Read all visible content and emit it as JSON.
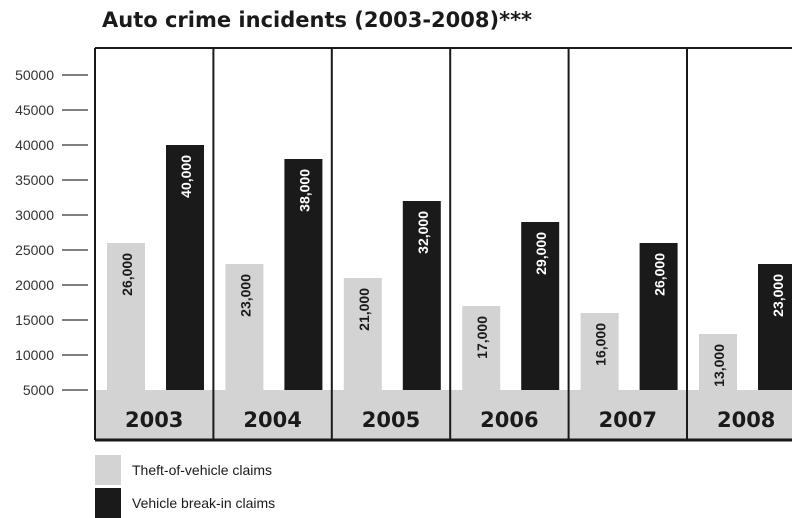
{
  "chart_data": {
    "type": "bar",
    "title": "Auto crime incidents (2003-2008)***",
    "categories": [
      "2003",
      "2004",
      "2005",
      "2006",
      "2007",
      "2008"
    ],
    "series": [
      {
        "name": "Theft-of-vehicle claims",
        "values": [
          26000,
          23000,
          21000,
          17000,
          16000,
          13000
        ],
        "labels": [
          "26,000",
          "23,000",
          "21,000",
          "17,000",
          "16,000",
          "13,000"
        ],
        "color": "#d3d3d3"
      },
      {
        "name": "Vehicle break-in claims",
        "values": [
          40000,
          38000,
          32000,
          29000,
          26000,
          23000
        ],
        "labels": [
          "40,000",
          "38,000",
          "32,000",
          "29,000",
          "26,000",
          "23,000"
        ],
        "color": "#1a1a1a"
      }
    ],
    "y_ticks": [
      "50000",
      "45000",
      "40000",
      "35000",
      "30000",
      "25000",
      "20000",
      "15000",
      "10000",
      "5000"
    ],
    "ylim": [
      5000,
      50000
    ],
    "grid": false,
    "legend": "bottom-left"
  },
  "colors": {
    "category_band": "#d3d3d3",
    "frame": "#1a1a1a",
    "text": "#1a1a1a"
  }
}
